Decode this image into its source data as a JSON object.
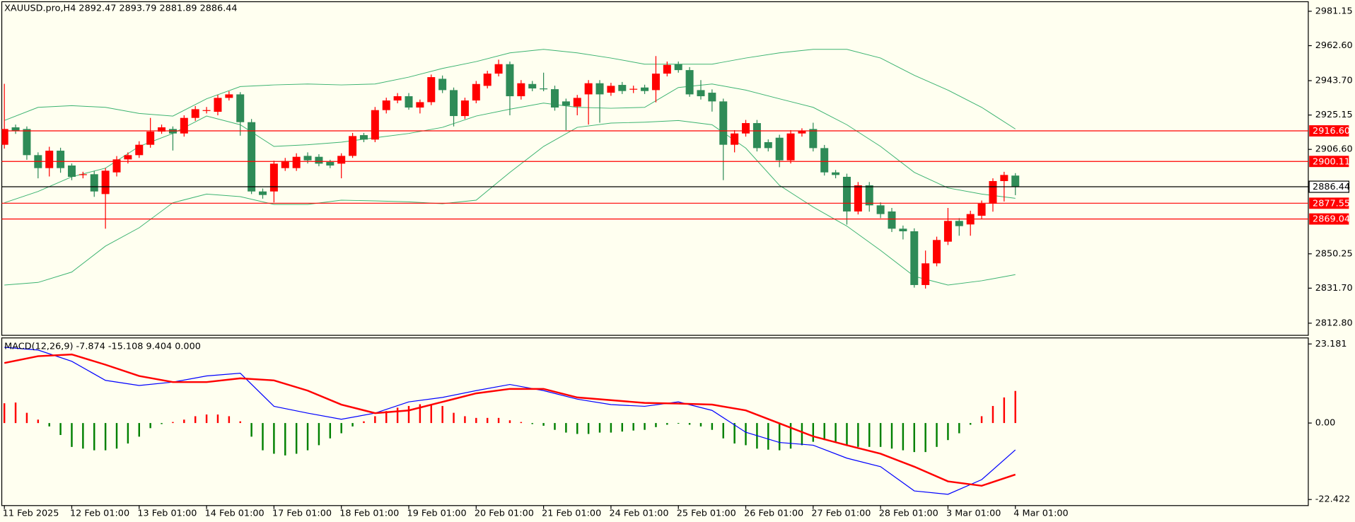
{
  "chart_data": [
    {
      "type": "candlestick",
      "title": "XAUUSD.pro,H4  2892.47 2893.79 2881.89 2886.44",
      "categories": [
        "11 Feb 2025",
        null,
        null,
        null,
        null,
        null,
        "12 Feb 01:00",
        null,
        null,
        null,
        null,
        null,
        "13 Feb 01:00",
        null,
        null,
        null,
        null,
        null,
        "14 Feb 01:00",
        null,
        null,
        null,
        null,
        null,
        "17 Feb 01:00",
        null,
        null,
        null,
        null,
        null,
        "18 Feb 01:00",
        null,
        null,
        null,
        null,
        null,
        "19 Feb 01:00",
        null,
        null,
        null,
        null,
        null,
        "20 Feb 01:00",
        null,
        null,
        null,
        null,
        null,
        "21 Feb 01:00",
        null,
        null,
        null,
        null,
        null,
        "24 Feb 01:00",
        null,
        null,
        null,
        null,
        null,
        "25 Feb 01:00",
        null,
        null,
        null,
        null,
        null,
        "26 Feb 01:00",
        null,
        null,
        null,
        null,
        null,
        "27 Feb 01:00",
        null,
        null,
        null,
        null,
        null,
        "28 Feb 01:00",
        null,
        null,
        null,
        null,
        null,
        "3 Mar 01:00",
        null,
        null,
        null,
        null,
        null,
        "4 Mar 01:00"
      ],
      "open": [
        2909.1,
        2918.5,
        2917.6,
        2903.5,
        2896.5,
        2905.9,
        2897.9,
        2892.8,
        2893.2,
        2882.5,
        2894.2,
        2901.2,
        2903.5,
        2909.1,
        2916.2,
        2917.6,
        2915.2,
        2923.6,
        2927.4,
        2926.9,
        2934.4,
        2936.3,
        2921.3,
        2883.9,
        2883.9,
        2896.5,
        2896.5,
        2903.1,
        2902.6,
        2899.8,
        2898.9,
        2903.1,
        2914.3,
        2911.9,
        2927.8,
        2933.0,
        2935.3,
        2929.2,
        2932.1,
        2944.7,
        2938.6,
        2924.6,
        2933.0,
        2940.9,
        2947.5,
        2952.6,
        2935.3,
        2941.9,
        2939.5,
        2939.1,
        2932.5,
        2929.7,
        2936.3,
        2942.3,
        2937.2,
        2941.4,
        2939.1,
        2940.0,
        2938.6,
        2947.5,
        2952.6,
        2949.4,
        2938.6,
        2937.2,
        2932.5,
        2909.1,
        2915.2,
        2920.8,
        2910.5,
        2912.9,
        2900.7,
        2915.2,
        2917.6,
        2907.3,
        2894.2,
        2891.8,
        2873.1,
        2887.2,
        2876.4,
        2873.1,
        2863.8,
        2862.4,
        2833.4,
        2845.1,
        2856.8,
        2868.0,
        2866.1,
        2870.8,
        2877.3,
        2889.5,
        2892.47
      ],
      "high": [
        2942.0,
        2920.0,
        2919.0,
        2905.0,
        2908.0,
        2907.5,
        2899.0,
        2894.5,
        2895.0,
        2896.5,
        2903.0,
        2905.0,
        2911.0,
        2923.6,
        2920.0,
        2919.0,
        2925.0,
        2930.0,
        2929.5,
        2936.0,
        2938.0,
        2937.5,
        2923.0,
        2885.5,
        2900.5,
        2902.0,
        2904.5,
        2905.0,
        2904.0,
        2901.0,
        2904.5,
        2915.5,
        2915.5,
        2929.5,
        2934.5,
        2937.0,
        2937.0,
        2933.5,
        2947.0,
        2946.5,
        2940.0,
        2934.5,
        2943.5,
        2949.0,
        2955.0,
        2954.0,
        2944.0,
        2943.5,
        2948.0,
        2941.0,
        2934.0,
        2936.0,
        2944.0,
        2944.0,
        2942.5,
        2943.0,
        2941.0,
        2941.5,
        2957.0,
        2954.0,
        2954.0,
        2951.0,
        2944.0,
        2939.0,
        2934.0,
        2917.0,
        2922.5,
        2922.5,
        2912.0,
        2914.5,
        2917.0,
        2918.0,
        2921.0,
        2909.0,
        2895.5,
        2893.5,
        2889.0,
        2889.0,
        2878.0,
        2875.0,
        2865.5,
        2864.0,
        2852.0,
        2859.5,
        2875.0,
        2869.5,
        2873.5,
        2879.0,
        2891.0,
        2894.5,
        2893.79
      ],
      "low": [
        2907.0,
        2915.0,
        2901.0,
        2891.0,
        2892.0,
        2894.0,
        2890.0,
        2891.0,
        2881.0,
        2863.8,
        2892.0,
        2899.0,
        2902.0,
        2907.5,
        2915.0,
        2906.0,
        2913.5,
        2922.0,
        2926.0,
        2925.0,
        2933.0,
        2914.0,
        2882.5,
        2880.0,
        2878.0,
        2895.0,
        2895.0,
        2899.0,
        2897.5,
        2896.5,
        2891.0,
        2902.0,
        2910.5,
        2910.5,
        2926.0,
        2931.5,
        2928.0,
        2926.0,
        2930.5,
        2937.0,
        2919.0,
        2923.0,
        2931.5,
        2939.5,
        2946.0,
        2925.0,
        2933.5,
        2938.0,
        2938.0,
        2927.5,
        2917.0,
        2925.0,
        2920.0,
        2921.0,
        2935.5,
        2936.5,
        2937.0,
        2936.5,
        2932.0,
        2946.0,
        2948.0,
        2935.0,
        2933.5,
        2927.0,
        2890.0,
        2905.0,
        2913.5,
        2905.5,
        2905.5,
        2897.0,
        2899.0,
        2913.5,
        2905.5,
        2892.5,
        2891.0,
        2866.0,
        2871.5,
        2873.0,
        2869.5,
        2862.0,
        2858.0,
        2832.0,
        2831.5,
        2843.5,
        2855.0,
        2860.0,
        2860.0,
        2869.0,
        2873.0,
        2878.5,
        2881.89
      ],
      "close": [
        2917.6,
        2916.6,
        2903.5,
        2896.5,
        2905.9,
        2896.5,
        2891.8,
        2893.2,
        2883.9,
        2895.1,
        2901.2,
        2903.5,
        2909.1,
        2916.2,
        2918.5,
        2915.2,
        2923.6,
        2928.3,
        2927.8,
        2934.4,
        2936.3,
        2921.3,
        2883.9,
        2882.0,
        2898.9,
        2900.3,
        2902.6,
        2900.7,
        2898.9,
        2897.9,
        2903.1,
        2913.8,
        2911.9,
        2927.8,
        2933.0,
        2935.3,
        2929.2,
        2932.1,
        2945.6,
        2938.6,
        2924.6,
        2933.0,
        2941.9,
        2947.5,
        2952.6,
        2935.3,
        2942.3,
        2939.5,
        2939.1,
        2929.2,
        2930.2,
        2934.4,
        2942.3,
        2936.3,
        2940.9,
        2938.1,
        2939.3,
        2938.1,
        2947.5,
        2952.2,
        2949.4,
        2936.3,
        2935.3,
        2932.5,
        2909.1,
        2915.2,
        2920.8,
        2907.3,
        2907.3,
        2900.7,
        2915.2,
        2916.6,
        2907.3,
        2894.2,
        2892.8,
        2873.1,
        2887.2,
        2876.4,
        2871.7,
        2863.8,
        2862.4,
        2833.4,
        2845.1,
        2857.7,
        2868.0,
        2865.2,
        2871.7,
        2877.3,
        2889.5,
        2892.8,
        2886.44
      ],
      "up_color": "#ff0000",
      "down_color": "#2e8b57",
      "bands": {
        "color": "#3cb371",
        "x": [
          0,
          3,
          6,
          9,
          12,
          15,
          18,
          21,
          24,
          27,
          30,
          33,
          36,
          39,
          42,
          45,
          48,
          51,
          54,
          57,
          60,
          63,
          66,
          69,
          72,
          75,
          78,
          81,
          84,
          87,
          90
        ],
        "upper": [
          2922.2,
          2929.3,
          2930.2,
          2929.3,
          2926.0,
          2924.6,
          2933.9,
          2940.5,
          2941.4,
          2941.9,
          2941.4,
          2941.9,
          2945.6,
          2950.3,
          2954.0,
          2958.7,
          2960.6,
          2958.7,
          2955.9,
          2952.6,
          2952.6,
          2952.6,
          2955.9,
          2958.7,
          2960.6,
          2960.6,
          2955.9,
          2946.6,
          2938.6,
          2929.3,
          2917.6
        ],
        "middle": [
          2877.8,
          2883.9,
          2891.8,
          2896.5,
          2908.2,
          2915.2,
          2924.6,
          2919.9,
          2908.2,
          2909.1,
          2910.5,
          2912.9,
          2915.2,
          2918.5,
          2924.6,
          2928.3,
          2931.6,
          2929.3,
          2928.8,
          2929.3,
          2940.0,
          2941.9,
          2938.6,
          2933.9,
          2929.3,
          2919.9,
          2908.2,
          2894.2,
          2885.8,
          2882.5,
          2880.2
        ],
        "lower": [
          2833.4,
          2834.8,
          2840.4,
          2854.4,
          2864.3,
          2877.8,
          2882.5,
          2881.1,
          2876.9,
          2876.9,
          2879.2,
          2878.8,
          2878.3,
          2877.3,
          2879.2,
          2894.2,
          2908.2,
          2918.5,
          2920.8,
          2921.3,
          2922.2,
          2919.9,
          2907.3,
          2887.2,
          2875.5,
          2865.2,
          2852.1,
          2838.1,
          2833.4,
          2835.7,
          2839.0
        ]
      },
      "hlines": [
        {
          "value": 2916.6,
          "label": "2916.60"
        },
        {
          "value": 2900.11,
          "label": "2900.11"
        },
        {
          "value": 2877.55,
          "label": "2877.55"
        },
        {
          "value": 2869.04,
          "label": "2869.04"
        }
      ],
      "hline_color": "#ff0000",
      "current_price": 2886.44,
      "ylim": [
        2806.25,
        2986.3
      ],
      "yticks": [
        2981.15,
        {
          "value": 2962.6,
          "label": "2962.60"
        },
        {
          "value": 2943.7,
          "label": "2943.70"
        },
        2925.15,
        {
          "value": 2906.6,
          "label": "2906.60"
        },
        2850.25,
        {
          "value": 2831.7,
          "label": "2831.70"
        },
        {
          "value": 2812.8,
          "label": "2812.80"
        }
      ]
    },
    {
      "type": "macd",
      "title": "MACD(12,26,9) -7.874 -15.108 9.404 0.000",
      "histogram": [
        5.8,
        6,
        3,
        1,
        -1,
        -3.5,
        -7,
        -7.5,
        -8,
        -8,
        -7.5,
        -6,
        -4,
        -1.5,
        -0.3,
        0.3,
        1,
        2,
        2.5,
        2.5,
        2,
        0.5,
        -4,
        -8,
        -9,
        -9.5,
        -9,
        -8,
        -6.5,
        -4.5,
        -3,
        -1,
        0.5,
        2,
        3.5,
        4.5,
        5,
        5.5,
        5.5,
        5,
        3,
        2,
        1.5,
        1.5,
        1.5,
        0.8,
        0.3,
        -0.3,
        -0.8,
        -2,
        -2.8,
        -3.2,
        -3.2,
        -2.8,
        -2.8,
        -2.5,
        -2.2,
        -2,
        -1.2,
        -0.5,
        -0.2,
        -0.5,
        -1,
        -2,
        -4.5,
        -6,
        -6.5,
        -7.5,
        -7.8,
        -8,
        -7.5,
        -6.5,
        -5.5,
        -5,
        -5.5,
        -6.5,
        -7,
        -7,
        -7,
        -7.5,
        -8,
        -8.5,
        -8.5,
        -7,
        -5,
        -3,
        -0.5,
        2,
        5,
        7.5,
        9.404
      ],
      "up_color": "#ff0000",
      "down_color": "#008000",
      "x": [
        0,
        3,
        6,
        9,
        12,
        15,
        18,
        21,
        24,
        27,
        30,
        33,
        36,
        39,
        42,
        45,
        48,
        51,
        54,
        57,
        60,
        63,
        66,
        69,
        72,
        75,
        78,
        81,
        84,
        87,
        90
      ],
      "lines": [
        {
          "color": "#0000ff",
          "width": 1,
          "values": [
            22.2,
            21.4,
            18.1,
            12.5,
            11.0,
            12.0,
            13.8,
            14.6,
            4.9,
            2.9,
            1.1,
            2.9,
            6.2,
            7.5,
            9.5,
            11.3,
            9.5,
            7.0,
            5.4,
            4.9,
            6.2,
            3.7,
            -2.7,
            -5.7,
            -6.5,
            -10.3,
            -12.8,
            -19.9,
            -20.9,
            -16.6,
            -7.874
          ]
        },
        {
          "color": "#ff0000",
          "width": 2,
          "values": [
            17.6,
            19.6,
            20.1,
            17.1,
            13.8,
            12.0,
            12.0,
            13.1,
            12.5,
            9.5,
            5.4,
            2.9,
            3.7,
            6.2,
            8.7,
            10.0,
            10.0,
            7.5,
            6.7,
            5.9,
            5.7,
            5.4,
            3.7,
            -0.1,
            -3.9,
            -6.5,
            -9.0,
            -12.8,
            -17.1,
            -18.4,
            -15.108
          ]
        }
      ],
      "ylim": [
        -24.2,
        24.95
      ],
      "yticks": [
        23.181,
        {
          "value": 0,
          "label": "0.00"
        },
        -22.422
      ]
    }
  ]
}
